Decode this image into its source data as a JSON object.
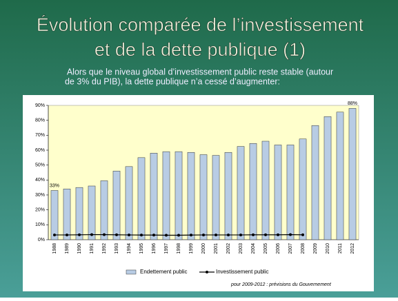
{
  "chart_data": {
    "type": "bar",
    "title": [
      "Évolution comparée de l’investissement",
      "et de la dette publique (1)"
    ],
    "subtitle": [
      "Alors que le niveau global d’investissement public reste stable (autour",
      "de 3% du PIB), la dette publique n’a cessé d’augmenter:"
    ],
    "categories": [
      "1988",
      "1989",
      "1990",
      "1991",
      "1992",
      "1993",
      "1994",
      "1995",
      "1996",
      "1997",
      "1998",
      "1999",
      "2000",
      "2001",
      "2002",
      "2003",
      "2004",
      "2005",
      "2006",
      "2007",
      "2008",
      "2009",
      "2010",
      "2011",
      "2012"
    ],
    "series": [
      {
        "name": "Endettement public",
        "type": "bar",
        "color": "#b8cce4",
        "values": [
          33,
          34,
          35,
          36,
          39.5,
          46,
          49,
          55,
          58,
          59,
          59,
          58.5,
          57,
          56.5,
          58.5,
          62.5,
          64.5,
          66,
          63.5,
          63.5,
          67.5,
          76.5,
          82.5,
          85.5,
          88
        ],
        "value_labels": [
          "33%",
          null,
          null,
          null,
          null,
          null,
          null,
          null,
          null,
          null,
          null,
          null,
          null,
          null,
          null,
          null,
          null,
          null,
          null,
          null,
          null,
          null,
          null,
          null,
          "88%"
        ]
      },
      {
        "name": "Investissement public",
        "type": "line",
        "color": "#000000",
        "values": [
          3.2,
          3.2,
          3.3,
          3.4,
          3.4,
          3.3,
          3.2,
          3.1,
          3.1,
          3.0,
          3.0,
          3.1,
          3.2,
          3.2,
          3.2,
          3.2,
          3.3,
          3.3,
          3.3,
          3.4,
          3.3,
          null,
          null,
          null,
          null
        ]
      }
    ],
    "ylim": [
      0,
      90
    ],
    "yticks": [
      {
        "value": 0,
        "label": "0%"
      },
      {
        "value": 10,
        "label": "10%"
      },
      {
        "value": 20,
        "label": "20%"
      },
      {
        "value": 30,
        "label": "30%"
      },
      {
        "value": 40,
        "label": "40%"
      },
      {
        "value": 50,
        "label": "50%"
      },
      {
        "value": 60,
        "label": "60%"
      },
      {
        "value": 70,
        "label": "70%"
      },
      {
        "value": 80,
        "label": "80%"
      },
      {
        "value": 90,
        "label": "90%"
      }
    ],
    "grid": false,
    "footnote": "pour 2009-2012 : prévisions du Gouvernement"
  }
}
